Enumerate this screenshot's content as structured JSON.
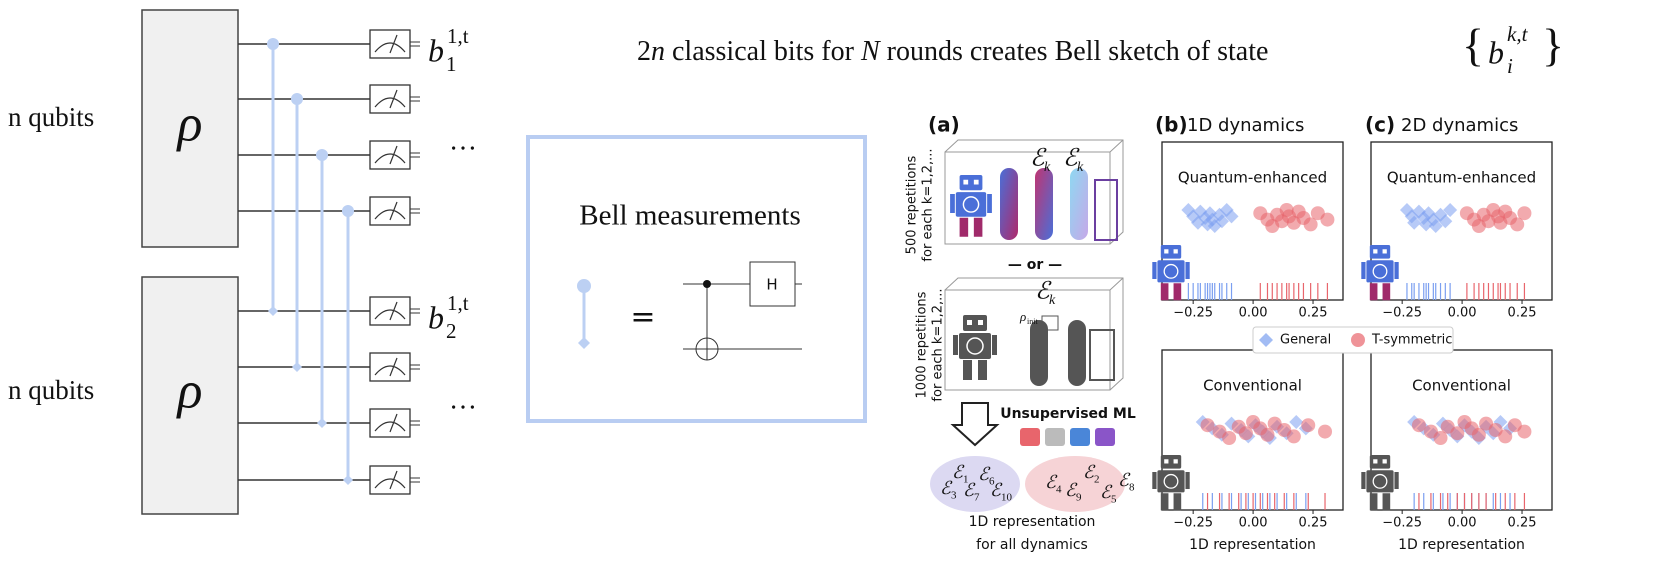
{
  "circuit": {
    "registers": [
      {
        "label": "n qubits",
        "state": "ρ",
        "output": "b",
        "output_sup": "1,t",
        "output_sub": "1",
        "ellipsis": "…"
      },
      {
        "label": "n qubits",
        "state": "ρ",
        "output": "b",
        "output_sup": "1,t",
        "output_sub": "2",
        "ellipsis": "…"
      }
    ]
  },
  "headline": {
    "parts": [
      {
        "text": "2"
      },
      {
        "text": "n",
        "italic": true
      },
      {
        "text": " classical bits for "
      },
      {
        "text": "N",
        "italic": true
      },
      {
        "text": " rounds creates Bell sketch of state "
      }
    ],
    "set": {
      "open": "{",
      "base": "b",
      "sub": "i",
      "sup": "k,t",
      "close": "}"
    }
  },
  "bell_box": {
    "title": "Bell measurements",
    "equals": "=",
    "gate": "H"
  },
  "panel_a": {
    "label": "(a)",
    "rep_top": [
      "500 repetitions",
      "for each k=1,2,..."
    ],
    "or": "— or —",
    "rep_bottom": [
      "1000 repetitions",
      "for each k=1,2,..."
    ],
    "channel": "ℰ",
    "channel_sub": "k",
    "rho_init": "ρ",
    "rho_init_sub": "init",
    "ml_label": "Unsupervised ML",
    "cluster_left": [
      "3",
      "1",
      "7",
      "6",
      "10"
    ],
    "cluster_right": [
      "4",
      "9",
      "2",
      "5",
      "8"
    ],
    "caption": [
      "1D representation",
      "for all dynamics"
    ]
  },
  "panels": [
    {
      "label": "(b)",
      "title": "1D dynamics"
    },
    {
      "label": "(c)",
      "title": "2D dynamics"
    }
  ],
  "chart_data": [
    {
      "type": "scatter",
      "title": "Quantum-enhanced",
      "xlim": [
        -0.38,
        0.375
      ],
      "xticks": [
        {
          "value": -0.25,
          "label": "−0.25"
        },
        {
          "value": 0,
          "label": "0.00"
        },
        {
          "value": 0.25,
          "label": "0.25"
        }
      ],
      "series": [
        {
          "name": "General",
          "color": "#7b9ff0",
          "marker": "diamond",
          "x": [
            -0.27,
            -0.25,
            -0.23,
            -0.22,
            -0.2,
            -0.19,
            -0.18,
            -0.17,
            -0.16,
            -0.14,
            -0.13,
            -0.11,
            -0.09
          ]
        },
        {
          "name": "T-symmetric",
          "color": "#e8656c",
          "marker": "circle",
          "x": [
            0.03,
            0.06,
            0.08,
            0.1,
            0.12,
            0.14,
            0.15,
            0.17,
            0.19,
            0.21,
            0.24,
            0.27,
            0.31
          ]
        }
      ]
    },
    {
      "type": "scatter",
      "title": "Quantum-enhanced",
      "xlim": [
        -0.38,
        0.375
      ],
      "xticks": [
        {
          "value": -0.25,
          "label": "−0.25"
        },
        {
          "value": 0,
          "label": "0.00"
        },
        {
          "value": 0.25,
          "label": "0.25"
        }
      ],
      "series": [
        {
          "name": "General",
          "color": "#7b9ff0",
          "marker": "diamond",
          "x": [
            -0.23,
            -0.21,
            -0.2,
            -0.18,
            -0.16,
            -0.15,
            -0.14,
            -0.12,
            -0.11,
            -0.09,
            -0.07,
            -0.05
          ]
        },
        {
          "name": "T-symmetric",
          "color": "#e8656c",
          "marker": "circle",
          "x": [
            0.02,
            0.05,
            0.07,
            0.09,
            0.11,
            0.13,
            0.15,
            0.16,
            0.18,
            0.2,
            0.23,
            0.26
          ]
        }
      ]
    },
    {
      "type": "scatter",
      "title": "Conventional",
      "xlabel": "1D representation",
      "xlim": [
        -0.38,
        0.375
      ],
      "xticks": [
        {
          "value": -0.25,
          "label": "−0.25"
        },
        {
          "value": 0,
          "label": "0.00"
        },
        {
          "value": 0.25,
          "label": "0.25"
        }
      ],
      "series": [
        {
          "name": "General",
          "color": "#7b9ff0",
          "marker": "diamond",
          "x": [
            -0.21,
            -0.17,
            -0.13,
            -0.09,
            -0.05,
            -0.02,
            0.01,
            0.04,
            0.07,
            0.1,
            0.14,
            0.18,
            0.22
          ]
        },
        {
          "name": "T-symmetric",
          "color": "#e8656c",
          "marker": "circle",
          "x": [
            -0.19,
            -0.14,
            -0.1,
            -0.06,
            -0.03,
            0.0,
            0.03,
            0.06,
            0.09,
            0.13,
            0.17,
            0.23,
            0.3
          ]
        }
      ]
    },
    {
      "type": "scatter",
      "title": "Conventional",
      "xlabel": "1D representation",
      "xlim": [
        -0.38,
        0.375
      ],
      "xticks": [
        {
          "value": -0.25,
          "label": "−0.25"
        },
        {
          "value": 0,
          "label": "0.00"
        },
        {
          "value": 0.25,
          "label": "0.25"
        }
      ],
      "series": [
        {
          "name": "General",
          "color": "#7b9ff0",
          "marker": "diamond",
          "x": [
            -0.2,
            -0.16,
            -0.12,
            -0.08,
            -0.05,
            -0.02,
            0.01,
            0.04,
            0.07,
            0.1,
            0.13,
            0.16,
            0.2
          ]
        },
        {
          "name": "T-symmetric",
          "color": "#e8656c",
          "marker": "circle",
          "x": [
            -0.18,
            -0.13,
            -0.09,
            -0.06,
            -0.02,
            0.01,
            0.04,
            0.07,
            0.1,
            0.14,
            0.18,
            0.22,
            0.26
          ]
        }
      ]
    }
  ]
}
